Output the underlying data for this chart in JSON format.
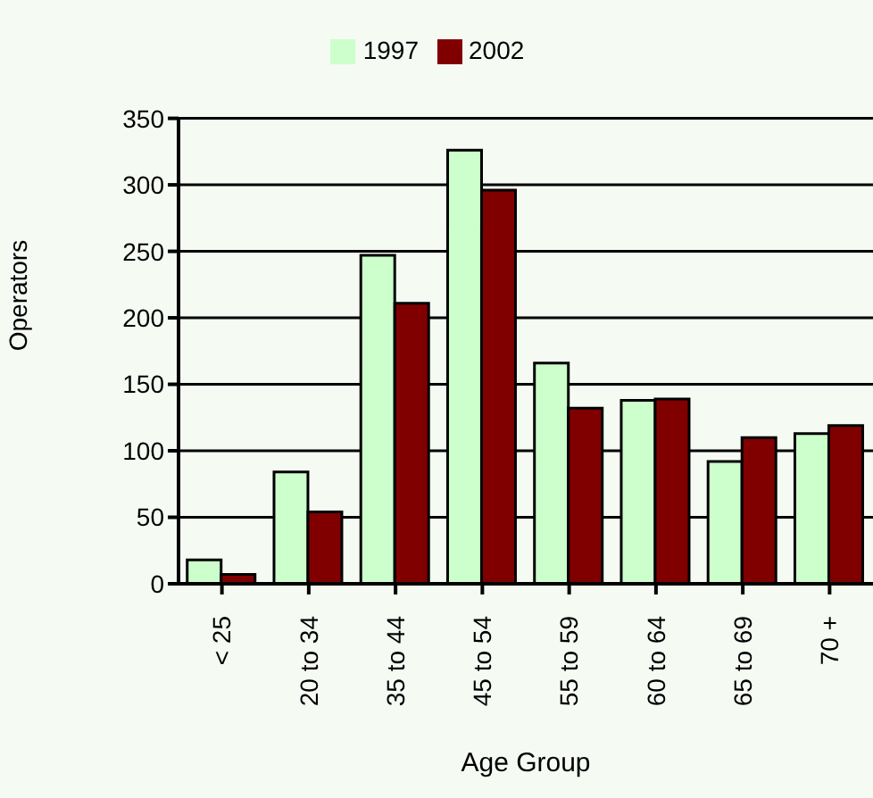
{
  "chart_data": {
    "type": "bar",
    "xlabel": "Age Group",
    "ylabel": "Operators",
    "categories": [
      "< 25",
      "20 to 34",
      "35 to 44",
      "45 to 54",
      "55 to 59",
      "60 to 64",
      "65 to 69",
      "70 +"
    ],
    "series": [
      {
        "name": "1997",
        "color": "#ccffcc",
        "values": [
          18,
          84,
          247,
          326,
          166,
          138,
          92,
          113
        ]
      },
      {
        "name": "2002",
        "color": "#800000",
        "values": [
          7,
          54,
          211,
          296,
          132,
          139,
          110,
          119
        ]
      }
    ],
    "ylim": [
      0,
      350
    ],
    "yticks": [
      0,
      50,
      100,
      150,
      200,
      250,
      300,
      350
    ],
    "grid": "y",
    "legend": "top"
  }
}
